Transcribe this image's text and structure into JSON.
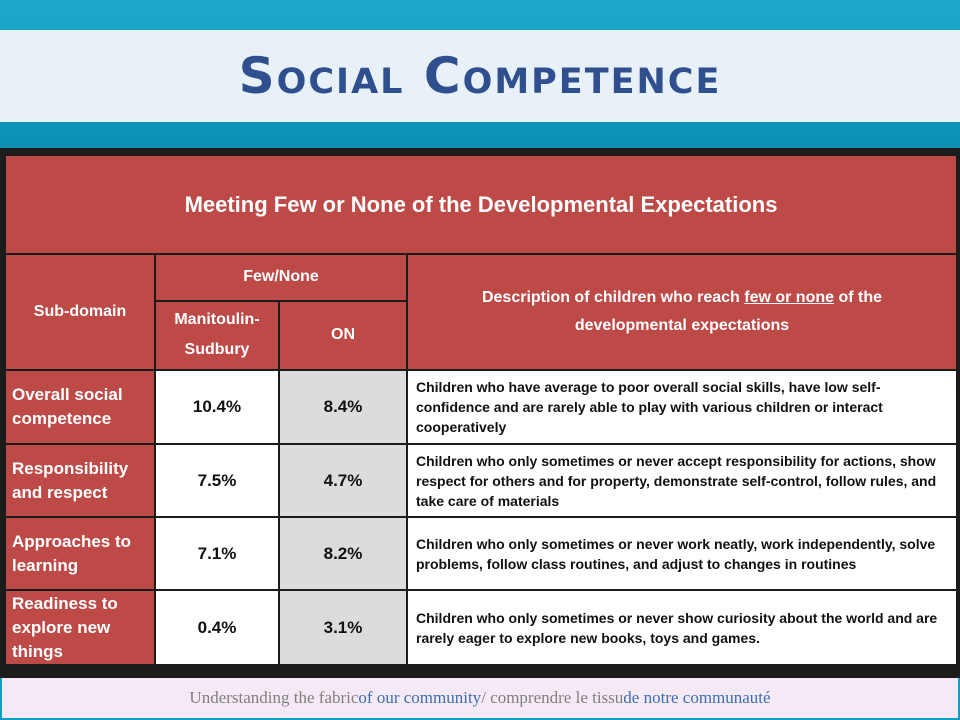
{
  "slide": {
    "title": "Social Competence",
    "footer": {
      "part1": "Understanding the fabric ",
      "part2": "of our community",
      "part3": " / comprendre le tissu ",
      "part4": "de notre communauté"
    }
  },
  "table": {
    "main_header": "Meeting Few or None of the Developmental Expectations",
    "subdomain_header": "Sub-domain",
    "fewnone_header": "Few/None",
    "col_a": "Manitoulin-Sudbury",
    "col_b": "ON",
    "desc_header_pre": "Description of children who reach ",
    "desc_header_ul": "few or none",
    "desc_header_post": " of the developmental expectations",
    "rows": [
      {
        "subdomain": "Overall social competence",
        "manitoulin_sudbury": "10.4%",
        "on": "8.4%",
        "description": "Children who have average to poor overall social skills, have low self-confidence and are rarely able to play with various children or interact cooperatively"
      },
      {
        "subdomain": "Responsibility and respect",
        "manitoulin_sudbury": "7.5%",
        "on": "4.7%",
        "description": "Children who only sometimes or never accept responsibility for actions, show respect for others and for property, demonstrate self-control, follow rules, and take care of materials"
      },
      {
        "subdomain": "Approaches to learning",
        "manitoulin_sudbury": "7.1%",
        "on": "8.2%",
        "description": "Children who only sometimes or never work neatly, work independently, solve problems, follow class routines, and adjust to changes in routines"
      },
      {
        "subdomain": "Readiness to explore new things",
        "manitoulin_sudbury": "0.4%",
        "on": "3.1%",
        "description": "Children who only sometimes or never show curiosity about the world and are rarely eager to explore new books, toys and games."
      }
    ]
  }
}
